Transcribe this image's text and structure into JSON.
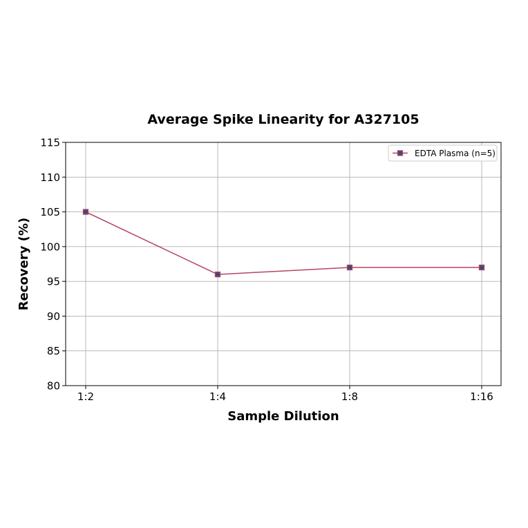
{
  "chart_data": {
    "type": "line",
    "title": "Average Spike Linearity for A327105",
    "xlabel": "Sample Dilution",
    "ylabel": "Recovery (%)",
    "categories": [
      "1:2",
      "1:4",
      "1:8",
      "1:16"
    ],
    "series": [
      {
        "name": "EDTA Plasma (n=5)",
        "values": [
          105,
          96,
          97,
          97
        ]
      }
    ],
    "ylim": [
      80,
      115
    ],
    "yticks": [
      80,
      85,
      90,
      95,
      100,
      105,
      110,
      115
    ],
    "grid": true,
    "legend_position": "top-right",
    "colors": {
      "line": "#b5455f",
      "marker": "#3b4c7a"
    }
  }
}
